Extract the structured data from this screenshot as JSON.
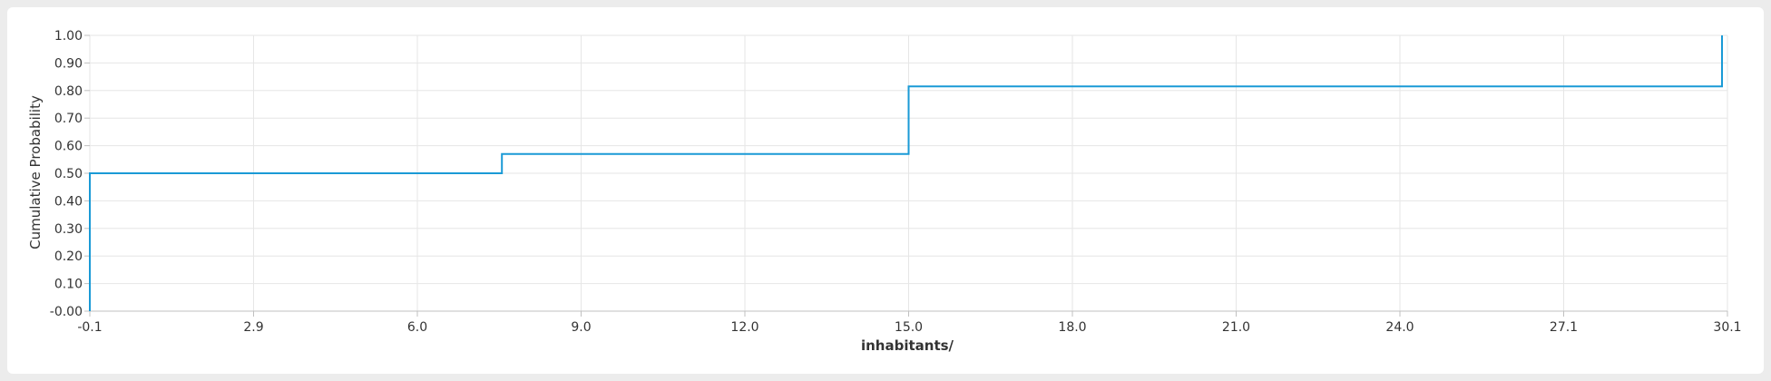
{
  "chart_data": {
    "type": "line",
    "step": true,
    "xlabel": "inhabitants/",
    "ylabel": "Cumulative Probability",
    "xlim": [
      -0.1,
      30.1
    ],
    "ylim": [
      0,
      1
    ],
    "x_ticks": [
      "-0.1",
      "2.9",
      "6.0",
      "9.0",
      "12.0",
      "15.0",
      "18.0",
      "21.0",
      "24.0",
      "27.1",
      "30.1"
    ],
    "y_ticks": [
      "-0.00",
      "0.10",
      "0.20",
      "0.30",
      "0.40",
      "0.50",
      "0.60",
      "0.70",
      "0.80",
      "0.90",
      "1.00"
    ],
    "grid": true,
    "series": [
      {
        "color": "#1a9ad6",
        "x": [
          -0.1,
          -0.1,
          7.5,
          7.5,
          15.0,
          15.0,
          30.0,
          30.0
        ],
        "y": [
          0.0,
          0.5,
          0.5,
          0.57,
          0.57,
          0.815,
          0.815,
          1.0
        ]
      }
    ]
  }
}
